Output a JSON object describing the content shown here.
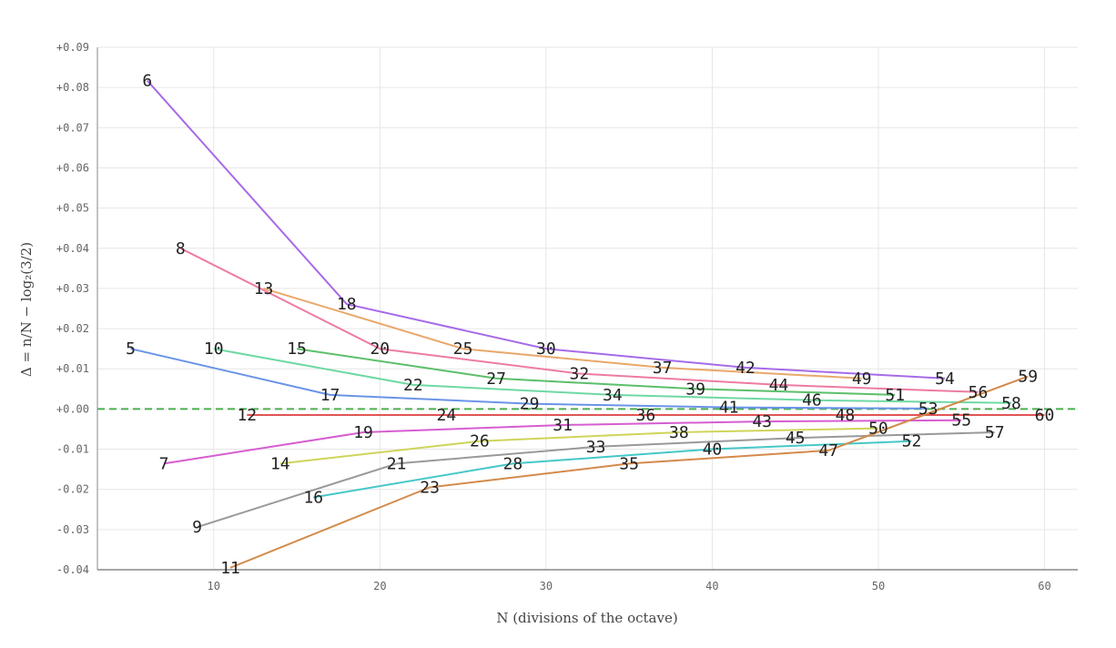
{
  "chart_data": {
    "type": "line",
    "xlabel": "N (divisions of the octave)",
    "ylabel": "Δ = n/N − log₂(3/2)",
    "xlim": [
      3,
      62
    ],
    "ylim": [
      -0.04,
      0.09
    ],
    "x_ticks": [
      {
        "value": 10,
        "label": "10"
      },
      {
        "value": 20,
        "label": "20"
      },
      {
        "value": 30,
        "label": "30"
      },
      {
        "value": 40,
        "label": "40"
      },
      {
        "value": 50,
        "label": "50"
      },
      {
        "value": 60,
        "label": "60"
      }
    ],
    "y_ticks": [
      {
        "value": 0.09,
        "label": "+0.09"
      },
      {
        "value": 0.08,
        "label": "+0.08"
      },
      {
        "value": 0.07,
        "label": "+0.07"
      },
      {
        "value": 0.06,
        "label": "+0.06"
      },
      {
        "value": 0.05,
        "label": "+0.05"
      },
      {
        "value": 0.04,
        "label": "+0.04"
      },
      {
        "value": 0.03,
        "label": "+0.03"
      },
      {
        "value": 0.02,
        "label": "+0.02"
      },
      {
        "value": 0.01,
        "label": "+0.01"
      },
      {
        "value": 0.0,
        "label": "+0.00"
      },
      {
        "value": -0.01,
        "label": "-0.01"
      },
      {
        "value": -0.02,
        "label": "-0.02"
      },
      {
        "value": -0.03,
        "label": "-0.03"
      },
      {
        "value": -0.04,
        "label": "-0.04"
      }
    ],
    "grid": true,
    "reference_line": {
      "y": 0,
      "style": "dashed",
      "color": "#4caf50"
    },
    "series": [
      {
        "color": "#a66be8",
        "points": [
          {
            "x": 6,
            "y": 0.0817,
            "label": "6"
          },
          {
            "x": 18,
            "y": 0.0261,
            "label": "18"
          },
          {
            "x": 30,
            "y": 0.015,
            "label": "30"
          },
          {
            "x": 42,
            "y": 0.0103,
            "label": "42"
          },
          {
            "x": 54,
            "y": 0.0076,
            "label": "54"
          }
        ]
      },
      {
        "color": "#e8a86a",
        "points": [
          {
            "x": 13,
            "y": 0.03,
            "label": "13"
          },
          {
            "x": 25,
            "y": 0.015,
            "label": "25"
          },
          {
            "x": 37,
            "y": 0.0103,
            "label": "37"
          },
          {
            "x": 49,
            "y": 0.0076,
            "label": "49"
          }
        ]
      },
      {
        "color": "#ee7ba3",
        "points": [
          {
            "x": 8,
            "y": 0.04,
            "label": "8"
          },
          {
            "x": 20,
            "y": 0.015,
            "label": "20"
          },
          {
            "x": 32,
            "y": 0.0088,
            "label": "32"
          },
          {
            "x": 44,
            "y": 0.006,
            "label": "44"
          },
          {
            "x": 56,
            "y": 0.0042,
            "label": "56"
          }
        ]
      },
      {
        "color": "#5bbf6a",
        "points": [
          {
            "x": 15,
            "y": 0.015,
            "label": "15"
          },
          {
            "x": 27,
            "y": 0.0076,
            "label": "27"
          },
          {
            "x": 39,
            "y": 0.005,
            "label": "39"
          },
          {
            "x": 51,
            "y": 0.0035,
            "label": "51"
          }
        ]
      },
      {
        "color": "#6ed8a4",
        "points": [
          {
            "x": 10,
            "y": 0.015,
            "label": "10"
          },
          {
            "x": 22,
            "y": 0.006,
            "label": "22"
          },
          {
            "x": 34,
            "y": 0.0035,
            "label": "34"
          },
          {
            "x": 46,
            "y": 0.0022,
            "label": "46"
          },
          {
            "x": 58,
            "y": 0.0015,
            "label": "58"
          }
        ]
      },
      {
        "color": "#6a94e8",
        "points": [
          {
            "x": 5,
            "y": 0.015,
            "label": "5"
          },
          {
            "x": 17,
            "y": 0.0035,
            "label": "17"
          },
          {
            "x": 29,
            "y": 0.0013,
            "label": "29"
          },
          {
            "x": 41,
            "y": 0.0004,
            "label": "41"
          },
          {
            "x": 53,
            "y": 0.0001,
            "label": "53"
          }
        ]
      },
      {
        "color": "#e05555",
        "points": [
          {
            "x": 12,
            "y": -0.0015,
            "label": "12"
          },
          {
            "x": 24,
            "y": -0.0015,
            "label": "24"
          },
          {
            "x": 36,
            "y": -0.0015,
            "label": "36"
          },
          {
            "x": 48,
            "y": -0.0015,
            "label": "48"
          },
          {
            "x": 60,
            "y": -0.0015,
            "label": "60"
          }
        ]
      },
      {
        "color": "#d65dd1",
        "points": [
          {
            "x": 7,
            "y": -0.0136,
            "label": "7"
          },
          {
            "x": 19,
            "y": -0.0058,
            "label": "19"
          },
          {
            "x": 31,
            "y": -0.004,
            "label": "31"
          },
          {
            "x": 43,
            "y": -0.0031,
            "label": "43"
          },
          {
            "x": 55,
            "y": -0.0028,
            "label": "55"
          }
        ]
      },
      {
        "color": "#cfd45a",
        "points": [
          {
            "x": 14,
            "y": -0.0136,
            "label": "14"
          },
          {
            "x": 26,
            "y": -0.008,
            "label": "26"
          },
          {
            "x": 38,
            "y": -0.0058,
            "label": "38"
          },
          {
            "x": 50,
            "y": -0.0048,
            "label": "50"
          }
        ]
      },
      {
        "color": "#999999",
        "points": [
          {
            "x": 9,
            "y": -0.0294,
            "label": "9"
          },
          {
            "x": 21,
            "y": -0.0136,
            "label": "21"
          },
          {
            "x": 33,
            "y": -0.0094,
            "label": "33"
          },
          {
            "x": 45,
            "y": -0.0072,
            "label": "45"
          },
          {
            "x": 57,
            "y": -0.0058,
            "label": "57"
          }
        ]
      },
      {
        "color": "#46c7c7",
        "points": [
          {
            "x": 16,
            "y": -0.022,
            "label": "16"
          },
          {
            "x": 28,
            "y": -0.0136,
            "label": "28"
          },
          {
            "x": 40,
            "y": -0.01,
            "label": "40"
          },
          {
            "x": 52,
            "y": -0.008,
            "label": "52"
          }
        ]
      },
      {
        "color": "#d48a4a",
        "points": [
          {
            "x": 11,
            "y": -0.0395,
            "label": "11"
          },
          {
            "x": 23,
            "y": -0.0195,
            "label": "23"
          },
          {
            "x": 35,
            "y": -0.0136,
            "label": "35"
          },
          {
            "x": 47,
            "y": -0.0103,
            "label": "47"
          },
          {
            "x": 59,
            "y": 0.0081,
            "label": "59"
          }
        ]
      }
    ]
  }
}
